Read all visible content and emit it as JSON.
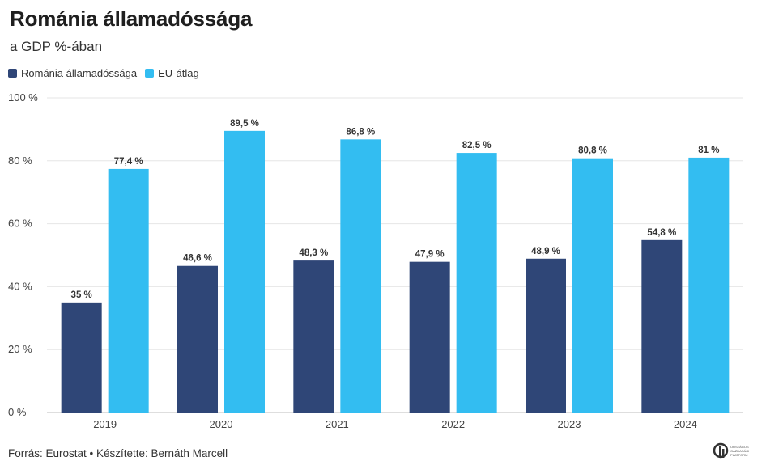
{
  "header": {
    "title": "Románia államadóssága",
    "subtitle": "a GDP %-ában"
  },
  "legend": [
    {
      "label": "Románia államadóssága",
      "color": "#2f4677"
    },
    {
      "label": "EU-átlag",
      "color": "#33bdf1"
    }
  ],
  "footer": {
    "source": "Forrás: Eurostat • Készítette: Bernáth Marcell"
  },
  "logo": {
    "text": "ORSZÁGOS GAZDASÁGI PLATFORM"
  },
  "chart_data": {
    "type": "bar",
    "categories": [
      "2019",
      "2020",
      "2021",
      "2022",
      "2023",
      "2024"
    ],
    "series": [
      {
        "name": "Románia államadóssága",
        "color": "#2f4677",
        "values": [
          35,
          46.6,
          48.3,
          47.9,
          48.9,
          54.8
        ],
        "labels": [
          "35 %",
          "46,6 %",
          "48,3 %",
          "47,9 %",
          "48,9 %",
          "54,8 %"
        ]
      },
      {
        "name": "EU-átlag",
        "color": "#33bdf1",
        "values": [
          77.4,
          89.5,
          86.8,
          82.5,
          80.8,
          81
        ],
        "labels": [
          "77,4 %",
          "89,5 %",
          "86,8 %",
          "82,5 %",
          "80,8 %",
          "81 %"
        ]
      }
    ],
    "y_ticks": [
      0,
      20,
      40,
      60,
      80,
      100
    ],
    "y_tick_labels": [
      "0 %",
      "20 %",
      "40 %",
      "60 %",
      "80 %",
      "100 %"
    ],
    "ylim": [
      0,
      100
    ],
    "grid": true,
    "legend_position": "top-left"
  }
}
